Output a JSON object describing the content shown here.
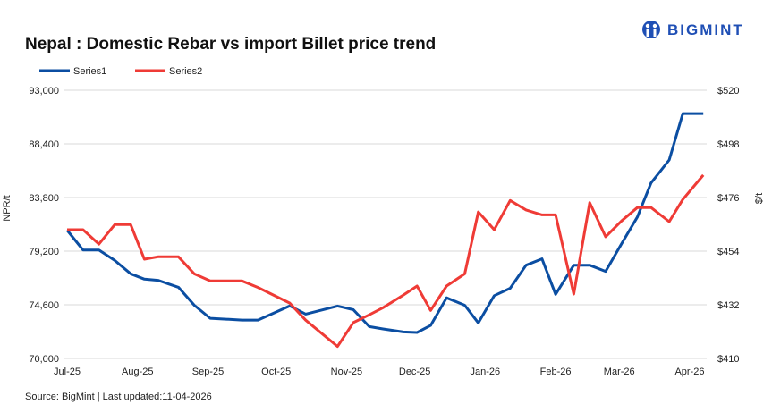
{
  "logo": {
    "text": "BIGMINT",
    "color": "#1f4fb5"
  },
  "source": "Source: BigMint | Last updated:11-04-2026",
  "chart_data": {
    "type": "line",
    "title": "Nepal : Domestic Rebar vs import Billet price trend",
    "legend_position": "top-left",
    "grid": "horizontal",
    "x_tick_labels": [
      "Jul-25",
      "Aug-25",
      "Sep-25",
      "Oct-25",
      "Nov-25",
      "Dec-25",
      "Jan-26",
      "Feb-26",
      "Mar-26",
      "Apr-26"
    ],
    "x_tick_dates": [
      "2025-07-01",
      "2025-08-01",
      "2025-09-01",
      "2025-10-01",
      "2025-11-01",
      "2025-12-01",
      "2026-01-01",
      "2026-02-01",
      "2026-03-01",
      "2026-04-01"
    ],
    "xlim": [
      "2025-07-01",
      "2026-04-07"
    ],
    "x": [
      "2025-07-01",
      "2025-07-08",
      "2025-07-15",
      "2025-07-22",
      "2025-07-29",
      "2025-08-04",
      "2025-08-10",
      "2025-08-19",
      "2025-08-26",
      "2025-09-02",
      "2025-09-16",
      "2025-09-23",
      "2025-10-07",
      "2025-10-14",
      "2025-10-28",
      "2025-11-04",
      "2025-11-11",
      "2025-11-17",
      "2025-11-26",
      "2025-12-02",
      "2025-12-08",
      "2025-12-15",
      "2025-12-23",
      "2025-12-29",
      "2026-01-05",
      "2026-01-12",
      "2026-01-19",
      "2026-01-26",
      "2026-02-01",
      "2026-02-09",
      "2026-02-16",
      "2026-02-23",
      "2026-03-02",
      "2026-03-09",
      "2026-03-15",
      "2026-03-23",
      "2026-03-29",
      "2026-04-07"
    ],
    "ylabel_left": "NPR/t",
    "ylim_left": [
      70000,
      93000
    ],
    "yticks_left": [
      "70,000",
      "74,600",
      "79,200",
      "83,800",
      "88,400",
      "93,000"
    ],
    "ylabel_right": "$/t",
    "ylim_right": [
      410,
      520
    ],
    "yticks_right": [
      "$410",
      "$432",
      "$454",
      "$476",
      "$498",
      "$520"
    ],
    "series": [
      {
        "name": "Series1",
        "axis": "left",
        "color": "#0b4ea2",
        "values": [
          81000,
          79300,
          79300,
          78400,
          77260,
          76800,
          76700,
          76100,
          74560,
          73440,
          73290,
          73290,
          74510,
          73800,
          74490,
          74180,
          72730,
          72530,
          72270,
          72220,
          72830,
          75200,
          74560,
          73040,
          75380,
          76020,
          78000,
          78540,
          75500,
          78000,
          78000,
          77470,
          79840,
          82130,
          85050,
          87020,
          91000,
          91000
        ]
      },
      {
        "name": "Series2",
        "axis": "right",
        "color": "#ef3b36",
        "values": [
          462.8,
          462.8,
          456.9,
          464.9,
          464.9,
          450.7,
          451.7,
          451.7,
          444.7,
          441.8,
          441.8,
          439.1,
          432.7,
          425.7,
          414.9,
          424.7,
          427.9,
          430.8,
          436.0,
          439.7,
          429.7,
          439.7,
          444.7,
          470.1,
          462.8,
          474.8,
          470.9,
          468.9,
          468.9,
          436.4,
          473.9,
          459.9,
          466.4,
          471.9,
          471.9,
          466.1,
          475.2,
          485.2
        ]
      }
    ]
  }
}
